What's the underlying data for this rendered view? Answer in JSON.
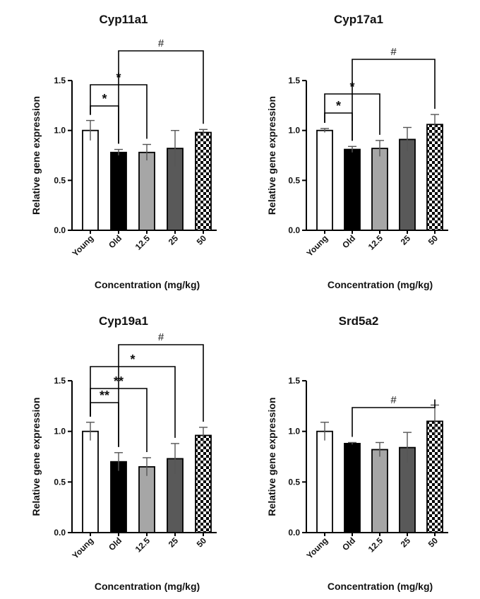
{
  "chart_data": [
    {
      "type": "bar",
      "title": "Cyp11a1",
      "xlabel": "Concentration  (mg/kg)",
      "ylabel": "Relative gene expression",
      "categories": [
        "Young",
        "Old",
        "12.5",
        "25",
        "50"
      ],
      "values": [
        1.0,
        0.78,
        0.78,
        0.82,
        0.98
      ],
      "errors": [
        0.1,
        0.03,
        0.08,
        0.18,
        0.03
      ],
      "ylim": [
        0,
        1.5
      ],
      "yticks": [
        "0.0",
        "0.5",
        "1.0",
        "1.5"
      ],
      "fills": [
        "white",
        "black",
        "lightgray",
        "darkgray",
        "checker"
      ],
      "significance": [
        {
          "from": 0,
          "to": 1,
          "label": "*"
        },
        {
          "from": 0,
          "to": 2,
          "label": "*"
        },
        {
          "from": 1,
          "to": 4,
          "label": "#"
        }
      ]
    },
    {
      "type": "bar",
      "title": "Cyp17a1",
      "xlabel": "Concentration  (mg/kg)",
      "ylabel": "Relative gene expression",
      "categories": [
        "Young",
        "Old",
        "12.5",
        "25",
        "50"
      ],
      "values": [
        1.0,
        0.81,
        0.82,
        0.91,
        1.06
      ],
      "errors": [
        0.02,
        0.03,
        0.08,
        0.12,
        0.1
      ],
      "ylim": [
        0,
        1.5
      ],
      "yticks": [
        "0.0",
        "0.5",
        "1.0",
        "1.5"
      ],
      "fills": [
        "white",
        "black",
        "lightgray",
        "darkgray",
        "checker"
      ],
      "significance": [
        {
          "from": 0,
          "to": 1,
          "label": "*"
        },
        {
          "from": 0,
          "to": 2,
          "label": "*"
        },
        {
          "from": 1,
          "to": 4,
          "label": "#"
        }
      ]
    },
    {
      "type": "bar",
      "title": "Cyp19a1",
      "xlabel": "Concentration  (mg/kg)",
      "ylabel": "Relative gene expression",
      "categories": [
        "Young",
        "Old",
        "12.5",
        "25",
        "50"
      ],
      "values": [
        1.0,
        0.7,
        0.65,
        0.73,
        0.96
      ],
      "errors": [
        0.09,
        0.09,
        0.09,
        0.15,
        0.08
      ],
      "ylim": [
        0,
        1.5
      ],
      "yticks": [
        "0.0",
        "0.5",
        "1.0",
        "1.5"
      ],
      "fills": [
        "white",
        "black",
        "lightgray",
        "darkgray",
        "checker"
      ],
      "significance": [
        {
          "from": 0,
          "to": 1,
          "label": "**"
        },
        {
          "from": 0,
          "to": 2,
          "label": "**"
        },
        {
          "from": 0,
          "to": 3,
          "label": "*"
        },
        {
          "from": 1,
          "to": 4,
          "label": "#"
        }
      ]
    },
    {
      "type": "bar",
      "title": "Srd5a2",
      "xlabel": "Concentration  (mg/kg)",
      "ylabel": "Relative gene expression",
      "categories": [
        "Young",
        "Old",
        "12.5",
        "25",
        "50"
      ],
      "values": [
        1.0,
        0.88,
        0.82,
        0.84,
        1.1
      ],
      "errors": [
        0.09,
        0.01,
        0.07,
        0.15,
        0.16
      ],
      "ylim": [
        0,
        1.5
      ],
      "yticks": [
        "0.0",
        "0.5",
        "1.0",
        "1.5"
      ],
      "fills": [
        "white",
        "black",
        "lightgray",
        "darkgray",
        "checker"
      ],
      "significance": [
        {
          "from": 1,
          "to": 4,
          "label": "#"
        }
      ]
    }
  ],
  "colors": {
    "white": "#ffffff",
    "black": "#000000",
    "lightgray": "#a6a6a6",
    "darkgray": "#595959",
    "axis": "#000000"
  }
}
